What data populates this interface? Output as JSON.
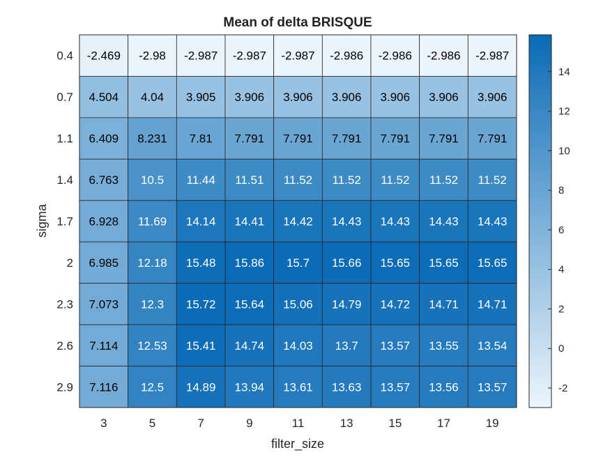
{
  "chart_data": {
    "type": "heatmap",
    "title": "Mean of delta BRISQUE",
    "xlabel": "filter_size",
    "ylabel": "sigma",
    "x_categories": [
      "3",
      "5",
      "7",
      "9",
      "11",
      "13",
      "15",
      "17",
      "19"
    ],
    "y_categories": [
      "0.4",
      "0.7",
      "1.1",
      "1.4",
      "1.7",
      "2",
      "2.3",
      "2.6",
      "2.9"
    ],
    "cell_labels": [
      [
        "-2.469",
        "-2.98",
        "-2.987",
        "-2.987",
        "-2.987",
        "-2.986",
        "-2.986",
        "-2.986",
        "-2.987"
      ],
      [
        "4.504",
        "4.04",
        "3.905",
        "3.906",
        "3.906",
        "3.906",
        "3.906",
        "3.906",
        "3.906"
      ],
      [
        "6.409",
        "8.231",
        "7.81",
        "7.791",
        "7.791",
        "7.791",
        "7.791",
        "7.791",
        "7.791"
      ],
      [
        "6.763",
        "10.5",
        "11.44",
        "11.51",
        "11.52",
        "11.52",
        "11.52",
        "11.52",
        "11.52"
      ],
      [
        "6.928",
        "11.69",
        "14.14",
        "14.41",
        "14.42",
        "14.43",
        "14.43",
        "14.43",
        "14.43"
      ],
      [
        "6.985",
        "12.18",
        "15.48",
        "15.86",
        "15.7",
        "15.66",
        "15.65",
        "15.65",
        "15.65"
      ],
      [
        "7.073",
        "12.3",
        "15.72",
        "15.64",
        "15.06",
        "14.79",
        "14.72",
        "14.71",
        "14.71"
      ],
      [
        "7.114",
        "12.53",
        "15.41",
        "14.74",
        "14.03",
        "13.7",
        "13.57",
        "13.55",
        "13.54"
      ],
      [
        "7.116",
        "12.5",
        "14.89",
        "13.94",
        "13.61",
        "13.63",
        "13.57",
        "13.56",
        "13.57"
      ]
    ],
    "colorbar": {
      "ticks": [
        "-2",
        "0",
        "2",
        "4",
        "6",
        "8",
        "10",
        "12",
        "14"
      ],
      "min": -2.987,
      "max": 15.86
    },
    "colors": {
      "low": "#ecf5fc",
      "high": "#0a6ab5",
      "grid": "#262626",
      "dark_text": "#000000",
      "light_text": "#ffffff"
    },
    "grid": true,
    "legend": "colorbar-right"
  }
}
